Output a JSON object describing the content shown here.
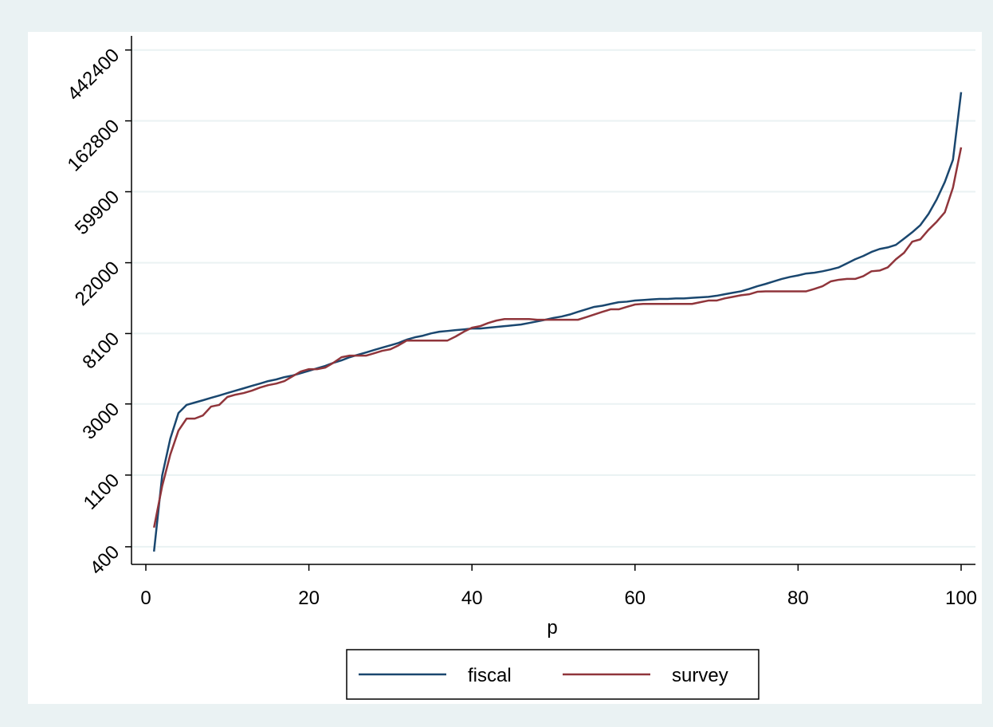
{
  "chart_data": {
    "type": "line",
    "x_label": "p",
    "x": [
      1,
      2,
      3,
      4,
      5,
      6,
      7,
      8,
      9,
      10,
      11,
      12,
      13,
      14,
      15,
      16,
      17,
      18,
      19,
      20,
      21,
      22,
      23,
      24,
      25,
      26,
      27,
      28,
      29,
      30,
      31,
      32,
      33,
      34,
      35,
      36,
      37,
      38,
      39,
      40,
      41,
      42,
      43,
      44,
      45,
      46,
      47,
      48,
      49,
      50,
      51,
      52,
      53,
      54,
      55,
      56,
      57,
      58,
      59,
      60,
      61,
      62,
      63,
      64,
      65,
      66,
      67,
      68,
      69,
      70,
      71,
      72,
      73,
      74,
      75,
      76,
      77,
      78,
      79,
      80,
      81,
      82,
      83,
      84,
      85,
      86,
      87,
      88,
      89,
      90,
      91,
      92,
      93,
      94,
      95,
      96,
      97,
      98,
      99,
      100
    ],
    "series": [
      {
        "name": "fiscal",
        "color": "#1a476f",
        "values": [
          374,
          1090,
          1840,
          2640,
          2960,
          3060,
          3160,
          3270,
          3380,
          3500,
          3620,
          3740,
          3870,
          4000,
          4140,
          4240,
          4380,
          4480,
          4630,
          4790,
          4960,
          5130,
          5360,
          5550,
          5800,
          6000,
          6200,
          6420,
          6640,
          6860,
          7100,
          7430,
          7680,
          7860,
          8120,
          8310,
          8400,
          8500,
          8590,
          8690,
          8690,
          8790,
          8890,
          8990,
          9090,
          9200,
          9400,
          9620,
          9840,
          10100,
          10300,
          10600,
          11000,
          11400,
          11800,
          12000,
          12300,
          12600,
          12700,
          12900,
          13000,
          13100,
          13200,
          13200,
          13300,
          13300,
          13400,
          13500,
          13600,
          13800,
          14100,
          14400,
          14700,
          15200,
          15800,
          16300,
          16900,
          17500,
          18000,
          18400,
          18900,
          19100,
          19500,
          20000,
          20600,
          21800,
          23100,
          24200,
          25600,
          26700,
          27300,
          28300,
          30900,
          33800,
          37400,
          43800,
          53700,
          68700,
          94000,
          244000
        ]
      },
      {
        "name": "survey",
        "color": "#90353b",
        "values": [
          524,
          940,
          1470,
          2060,
          2440,
          2440,
          2550,
          2890,
          2960,
          3310,
          3420,
          3500,
          3620,
          3780,
          3910,
          4000,
          4140,
          4430,
          4740,
          4900,
          4900,
          5010,
          5360,
          5800,
          5930,
          5930,
          5930,
          6130,
          6350,
          6490,
          6860,
          7340,
          7340,
          7340,
          7340,
          7340,
          7340,
          7770,
          8310,
          8790,
          8990,
          9400,
          9730,
          9940,
          9940,
          9940,
          9940,
          9840,
          9840,
          9840,
          9840,
          9840,
          9840,
          10200,
          10600,
          11000,
          11400,
          11400,
          11800,
          12200,
          12300,
          12300,
          12300,
          12300,
          12300,
          12300,
          12300,
          12600,
          12900,
          12900,
          13300,
          13600,
          13900,
          14100,
          14600,
          14700,
          14700,
          14700,
          14700,
          14700,
          14700,
          15200,
          15800,
          16900,
          17300,
          17500,
          17500,
          18200,
          19500,
          19700,
          20600,
          23100,
          25300,
          29600,
          30600,
          35000,
          39200,
          44800,
          63500,
          112000
        ]
      }
    ],
    "xlim": [
      -1.76,
      101.76
    ],
    "xticks": [
      0,
      20,
      40,
      60,
      80,
      100
    ],
    "ylim": [
      312,
      540000
    ],
    "yticks": [
      400,
      1100,
      3000,
      8100,
      22000,
      59900,
      162800,
      442400
    ],
    "ylog": true,
    "grid": true,
    "legend": "bottom"
  }
}
